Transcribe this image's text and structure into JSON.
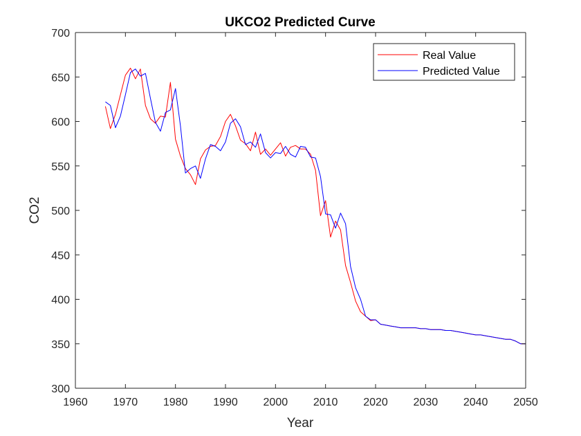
{
  "chart_data": {
    "type": "line",
    "title": "UKCO2 Predicted Curve",
    "xlabel": "Year",
    "ylabel": "CO2",
    "xlim": [
      1960,
      2050
    ],
    "ylim": [
      300,
      700
    ],
    "xticks": [
      1960,
      1970,
      1980,
      1990,
      2000,
      2010,
      2020,
      2030,
      2040,
      2050
    ],
    "yticks": [
      300,
      350,
      400,
      450,
      500,
      550,
      600,
      650,
      700
    ],
    "grid": false,
    "legend_position": "top-right",
    "series": [
      {
        "name": "Real Value",
        "color": "#ff0000",
        "x": [
          1966,
          1967,
          1968,
          1969,
          1970,
          1971,
          1972,
          1973,
          1974,
          1975,
          1976,
          1977,
          1978,
          1979,
          1980,
          1981,
          1982,
          1983,
          1984,
          1985,
          1986,
          1987,
          1988,
          1989,
          1990,
          1991,
          1992,
          1993,
          1994,
          1995,
          1996,
          1997,
          1998,
          1999,
          2000,
          2001,
          2002,
          2003,
          2004,
          2005,
          2006,
          2007,
          2008,
          2009,
          2010,
          2011,
          2012,
          2013,
          2014,
          2015,
          2016,
          2017,
          2018,
          2019,
          2020,
          2021,
          2022,
          2023,
          2024,
          2025,
          2026,
          2027,
          2028,
          2029,
          2030,
          2031,
          2032,
          2033,
          2034,
          2035,
          2036,
          2037,
          2038,
          2039,
          2040,
          2041,
          2042,
          2043,
          2044,
          2045,
          2046,
          2047,
          2048,
          2049,
          2050
        ],
        "values": [
          617,
          592,
          608,
          630,
          652,
          660,
          648,
          659,
          618,
          603,
          598,
          606,
          605,
          644,
          580,
          561,
          547,
          540,
          529,
          558,
          568,
          572,
          573,
          583,
          600,
          608,
          595,
          579,
          575,
          567,
          588,
          563,
          569,
          562,
          569,
          576,
          561,
          571,
          573,
          569,
          569,
          563,
          545,
          494,
          511,
          470,
          488,
          478,
          438,
          419,
          398,
          386,
          381,
          376,
          377,
          372,
          371,
          370,
          369,
          368,
          368,
          368,
          368,
          367,
          367,
          366,
          366,
          366,
          365,
          365,
          364,
          363,
          362,
          361,
          360,
          360,
          359,
          358,
          357,
          356,
          355,
          355,
          353,
          350,
          350
        ]
      },
      {
        "name": "Predicted Value",
        "color": "#0000ff",
        "x": [
          1966,
          1967,
          1968,
          1969,
          1970,
          1971,
          1972,
          1973,
          1974,
          1975,
          1976,
          1977,
          1978,
          1979,
          1980,
          1981,
          1982,
          1983,
          1984,
          1985,
          1986,
          1987,
          1988,
          1989,
          1990,
          1991,
          1992,
          1993,
          1994,
          1995,
          1996,
          1997,
          1998,
          1999,
          2000,
          2001,
          2002,
          2003,
          2004,
          2005,
          2006,
          2007,
          2008,
          2009,
          2010,
          2011,
          2012,
          2013,
          2014,
          2015,
          2016,
          2017,
          2018,
          2019,
          2020,
          2021,
          2022,
          2023,
          2024,
          2025,
          2026,
          2027,
          2028,
          2029,
          2030,
          2031,
          2032,
          2033,
          2034,
          2035,
          2036,
          2037,
          2038,
          2039,
          2040,
          2041,
          2042,
          2043,
          2044,
          2045,
          2046,
          2047,
          2048,
          2049,
          2050
        ],
        "values": [
          622,
          618,
          593,
          606,
          630,
          655,
          659,
          651,
          654,
          626,
          599,
          589,
          610,
          613,
          637,
          595,
          542,
          547,
          550,
          536,
          558,
          574,
          572,
          567,
          577,
          598,
          603,
          594,
          574,
          577,
          571,
          586,
          565,
          559,
          565,
          564,
          572,
          563,
          560,
          572,
          571,
          560,
          559,
          538,
          496,
          495,
          480,
          497,
          485,
          437,
          413,
          400,
          381,
          377,
          377,
          372,
          371,
          370,
          369,
          368,
          368,
          368,
          368,
          367,
          367,
          366,
          366,
          366,
          365,
          365,
          364,
          363,
          362,
          361,
          360,
          360,
          359,
          358,
          357,
          356,
          355,
          355,
          353,
          350,
          350
        ]
      }
    ]
  }
}
